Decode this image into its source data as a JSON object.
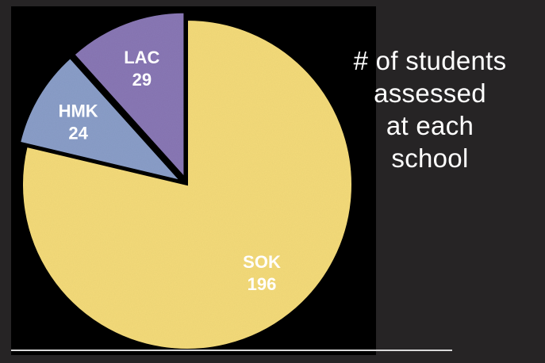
{
  "caption": {
    "lines": [
      "# of students",
      "assessed",
      "at each",
      "school"
    ]
  },
  "colors": {
    "background": "#262425",
    "panel": "#000000",
    "sok": "#f5dc7a",
    "hmk": "#8b9fc9",
    "lac": "#8a78b6",
    "label_text": "#ffffff"
  },
  "chart_data": {
    "type": "pie",
    "title": "",
    "categories": [
      "SOK",
      "HMK",
      "LAC"
    ],
    "values": [
      196,
      24,
      29
    ],
    "exploded": [
      "HMK",
      "LAC"
    ],
    "labels": [
      {
        "name": "SOK",
        "value": "196"
      },
      {
        "name": "HMK",
        "value": "24"
      },
      {
        "name": "LAC",
        "value": "29"
      }
    ]
  }
}
